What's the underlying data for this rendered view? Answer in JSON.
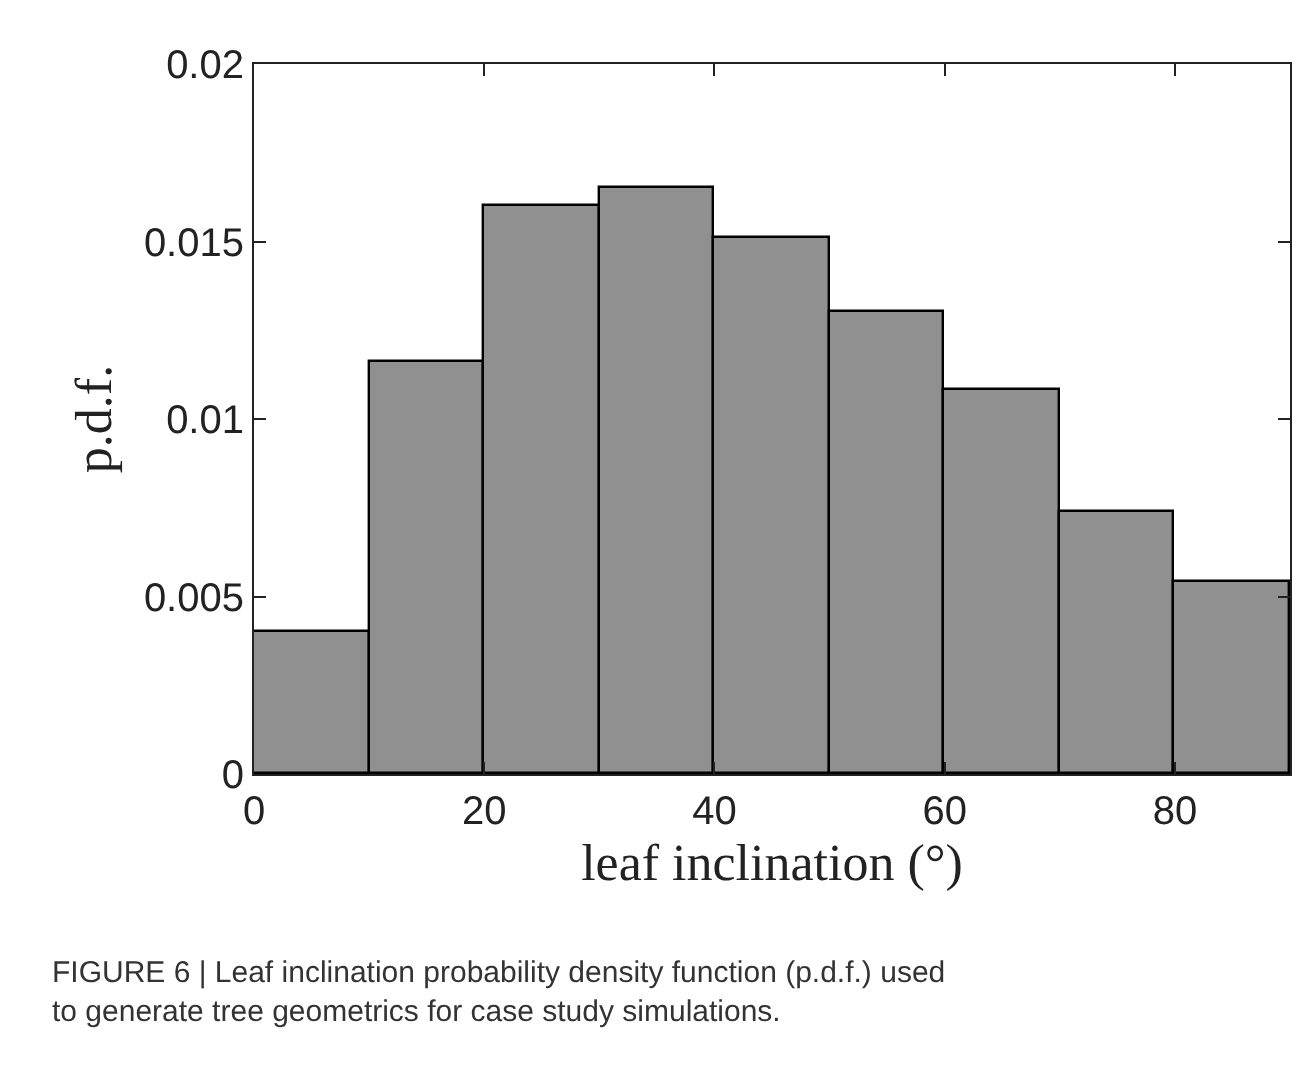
{
  "chart_data": {
    "type": "histogram",
    "xlabel": "leaf inclination (°)",
    "ylabel": "p.d.f.",
    "bins": [
      0,
      10,
      20,
      30,
      40,
      50,
      60,
      70,
      80,
      90
    ],
    "values": [
      0.004,
      0.0116,
      0.016,
      0.0165,
      0.0151,
      0.013,
      0.0108,
      0.0074,
      0.0054
    ],
    "color": "#909090",
    "xlim": [
      0,
      90
    ],
    "xticks": [
      0,
      20,
      40,
      60,
      80
    ],
    "ylim": [
      0,
      0.02
    ],
    "yticks": [
      0,
      0.005,
      0.01,
      0.015,
      0.02
    ],
    "annotations": [
      "FIGURE 6 | Leaf inclination probability density function (p.d.f.) used to generate tree geometrics for case study simulations."
    ]
  }
}
